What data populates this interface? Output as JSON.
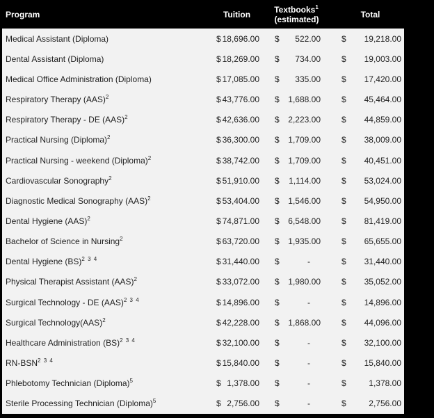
{
  "colors": {
    "header_bg": "#000000",
    "header_text": "#ffffff",
    "body_bg": "#f2f2f2",
    "body_text": "#1f1f1f"
  },
  "table": {
    "currency_symbol": "$",
    "columns": {
      "program": "Program",
      "tuition": "Tuition",
      "textbooks_line1": "Textbooks",
      "textbooks_sup": "1",
      "textbooks_line2": "(estimated)",
      "total": "Total"
    },
    "rows": [
      {
        "name": "Medical Assistant (Diploma)",
        "sup": "",
        "tuition": "18,696.00",
        "textbooks": "522.00",
        "total": "19,218.00"
      },
      {
        "name": "Dental Assistant (Diploma)",
        "sup": "",
        "tuition": "18,269.00",
        "textbooks": "734.00",
        "total": "19,003.00"
      },
      {
        "name": "Medical Office Administration (Diploma)",
        "sup": "",
        "tuition": "17,085.00",
        "textbooks": "335.00",
        "total": "17,420.00"
      },
      {
        "name": "Respiratory Therapy (AAS)",
        "sup": "2",
        "tuition": "43,776.00",
        "textbooks": "1,688.00",
        "total": "45,464.00"
      },
      {
        "name": "Respiratory Therapy - DE (AAS)",
        "sup": "2",
        "tuition": "42,636.00",
        "textbooks": "2,223.00",
        "total": "44,859.00"
      },
      {
        "name": "Practical Nursing (Diploma)",
        "sup": "2",
        "tuition": "36,300.00",
        "textbooks": "1,709.00",
        "total": "38,009.00"
      },
      {
        "name": "Practical Nursing - weekend (Diploma)",
        "sup": "2",
        "tuition": "38,742.00",
        "textbooks": "1,709.00",
        "total": "40,451.00"
      },
      {
        "name": "Cardiovascular Sonography",
        "sup": "2",
        "tuition": "51,910.00",
        "textbooks": "1,114.00",
        "total": "53,024.00"
      },
      {
        "name": "Diagnostic Medical Sonography (AAS)",
        "sup": "2",
        "tuition": "53,404.00",
        "textbooks": "1,546.00",
        "total": "54,950.00"
      },
      {
        "name": "Dental Hygiene (AAS)",
        "sup": "2",
        "tuition": "74,871.00",
        "textbooks": "6,548.00",
        "total": "81,419.00"
      },
      {
        "name": "Bachelor of Science in Nursing",
        "sup": "2",
        "tuition": "63,720.00",
        "textbooks": "1,935.00",
        "total": "65,655.00"
      },
      {
        "name": "Dental Hygiene (BS)",
        "sup": "2 3 4",
        "tuition": "31,440.00",
        "textbooks": "-",
        "total": "31,440.00"
      },
      {
        "name": "Physical Therapist Assistant (AAS)",
        "sup": "2",
        "tuition": "33,072.00",
        "textbooks": "1,980.00",
        "total": "35,052.00"
      },
      {
        "name": "Surgical Technology - DE (AAS)",
        "sup": "2 3 4",
        "tuition": "14,896.00",
        "textbooks": "-",
        "total": "14,896.00"
      },
      {
        "name": "Surgical Technology(AAS)",
        "sup": "2",
        "tuition": "42,228.00",
        "textbooks": "1,868.00",
        "total": "44,096.00"
      },
      {
        "name": "Healthcare Administration (BS)",
        "sup": "2 3 4",
        "tuition": "32,100.00",
        "textbooks": "-",
        "total": "32,100.00"
      },
      {
        "name": "RN-BSN",
        "sup": "2 3 4",
        "tuition": "15,840.00",
        "textbooks": "-",
        "total": "15,840.00"
      },
      {
        "name": "Phlebotomy Technician (Diploma)",
        "sup": "5",
        "tuition": "1,378.00",
        "textbooks": "-",
        "total": "1,378.00"
      },
      {
        "name": "Sterile Processing Technician (Diploma)",
        "sup": "5",
        "tuition": "2,756.00",
        "textbooks": "-",
        "total": "2,756.00"
      }
    ]
  }
}
